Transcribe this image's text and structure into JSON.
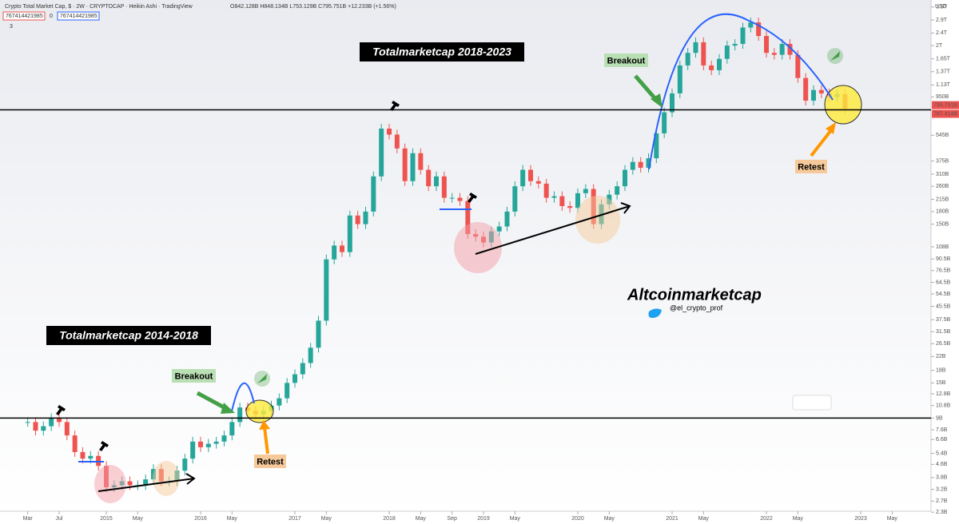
{
  "header": {
    "title": "Crypto Total Market Cap, $ · 2W · CRYPTOCAP · Heikin Ashi · TradingView",
    "ohlc": "O842.128B H848.134B L753.129B C795.751B +12.233B (+1.56%)",
    "inputs": [
      "767414421985",
      "0",
      "767414421985"
    ],
    "count": "3"
  },
  "chart_data": {
    "type": "candlestick",
    "x": [
      "2014-03",
      "2014-04",
      "2014-05",
      "2014-06",
      "2014-07",
      "2014-08",
      "2014-09",
      "2014-10",
      "2014-11",
      "2014-12",
      "2015-01",
      "2015-02",
      "2015-03",
      "2015-04",
      "2015-05",
      "2015-06",
      "2015-07",
      "2015-08",
      "2015-09",
      "2015-10",
      "2015-11",
      "2015-12",
      "2016-01",
      "2016-02",
      "2016-03",
      "2016-04",
      "2016-05",
      "2016-06",
      "2016-07",
      "2016-08",
      "2016-09",
      "2016-10",
      "2016-11",
      "2016-12",
      "2017-01",
      "2017-02",
      "2017-03",
      "2017-04",
      "2017-05",
      "2017-06",
      "2017-07",
      "2017-08",
      "2017-09",
      "2017-10",
      "2017-11",
      "2017-12",
      "2018-01",
      "2018-02",
      "2018-03",
      "2018-04",
      "2018-05",
      "2018-06",
      "2018-07",
      "2018-08",
      "2018-09",
      "2018-10",
      "2018-11",
      "2018-12",
      "2019-01",
      "2019-02",
      "2019-03",
      "2019-04",
      "2019-05",
      "2019-06",
      "2019-07",
      "2019-08",
      "2019-09",
      "2019-10",
      "2019-11",
      "2019-12",
      "2020-01",
      "2020-02",
      "2020-03",
      "2020-04",
      "2020-05",
      "2020-06",
      "2020-07",
      "2020-08",
      "2020-09",
      "2020-10",
      "2020-11",
      "2020-12",
      "2021-01",
      "2021-02",
      "2021-03",
      "2021-04",
      "2021-05",
      "2021-06",
      "2021-07",
      "2021-08",
      "2021-09",
      "2021-10",
      "2021-11",
      "2021-12",
      "2022-01",
      "2022-02",
      "2022-03",
      "2022-04",
      "2022-05",
      "2022-06",
      "2022-07",
      "2022-08",
      "2022-09",
      "2022-10",
      "2022-11"
    ],
    "close": [
      8.5,
      7.5,
      8,
      9,
      8.5,
      7,
      5.5,
      5,
      5.2,
      4.5,
      3.3,
      3.4,
      3.6,
      3.4,
      3.4,
      3.7,
      4.3,
      3.6,
      3.6,
      4.2,
      5,
      6.4,
      5.9,
      6.2,
      6.4,
      7,
      8.5,
      10.5,
      10,
      9.5,
      10,
      10.8,
      12,
      15,
      17,
      20,
      25,
      37,
      90,
      110,
      100,
      170,
      150,
      180,
      300,
      600,
      550,
      450,
      280,
      420,
      330,
      260,
      300,
      220,
      220,
      210,
      130,
      125,
      115,
      135,
      145,
      180,
      260,
      330,
      280,
      270,
      220,
      225,
      195,
      190,
      235,
      250,
      150,
      200,
      230,
      260,
      330,
      370,
      340,
      390,
      560,
      760,
      1000,
      1500,
      1800,
      2100,
      1500,
      1400,
      1650,
      2000,
      2050,
      2600,
      2800,
      2300,
      1800,
      1750,
      2050,
      1750,
      1250,
      900,
      1050,
      1000,
      950,
      990,
      800
    ],
    "up_color": "#26a69a",
    "down_color": "#ef5350",
    "log": true,
    "ylim": [
      2.2,
      3700
    ],
    "yticks": [
      {
        "value": 3500,
        "label": "3.5T"
      },
      {
        "value": 2900,
        "label": "2.9T"
      },
      {
        "value": 2400,
        "label": "2.4T"
      },
      {
        "value": 2000,
        "label": "2T"
      },
      {
        "value": 1650,
        "label": "1.65T"
      },
      {
        "value": 1370,
        "label": "1.37T"
      },
      {
        "value": 1130,
        "label": "1.13T"
      },
      {
        "value": 950,
        "label": "950B"
      },
      {
        "value": 545,
        "label": "545B"
      },
      {
        "value": 375,
        "label": "375B"
      },
      {
        "value": 310,
        "label": "310B"
      },
      {
        "value": 260,
        "label": "260B"
      },
      {
        "value": 215,
        "label": "215B"
      },
      {
        "value": 180,
        "label": "180B"
      },
      {
        "value": 150,
        "label": "150B"
      },
      {
        "value": 108,
        "label": "108B"
      },
      {
        "value": 90.5,
        "label": "90.5B"
      },
      {
        "value": 76.5,
        "label": "76.5B"
      },
      {
        "value": 64.5,
        "label": "64.5B"
      },
      {
        "value": 54.5,
        "label": "54.5B"
      },
      {
        "value": 45.5,
        "label": "45.5B"
      },
      {
        "value": 37.5,
        "label": "37.5B"
      },
      {
        "value": 31.5,
        "label": "31.5B"
      },
      {
        "value": 26.5,
        "label": "26.5B"
      },
      {
        "value": 22,
        "label": "22B"
      },
      {
        "value": 18,
        "label": "18B"
      },
      {
        "value": 15,
        "label": "15B"
      },
      {
        "value": 12.8,
        "label": "12.8B"
      },
      {
        "value": 10.8,
        "label": "10.8B"
      },
      {
        "value": 9,
        "label": "9B"
      },
      {
        "value": 7.6,
        "label": "7.6B"
      },
      {
        "value": 6.6,
        "label": "6.6B"
      },
      {
        "value": 5.4,
        "label": "5.4B"
      },
      {
        "value": 4.6,
        "label": "4.6B"
      },
      {
        "value": 3.8,
        "label": "3.8B"
      },
      {
        "value": 3.2,
        "label": "3.2B"
      },
      {
        "value": 2.7,
        "label": "2.7B"
      },
      {
        "value": 2.3,
        "label": "2.3B"
      }
    ],
    "xticks": [
      {
        "value": "2014-03",
        "label": "Mar"
      },
      {
        "value": "2014-07",
        "label": "Jul"
      },
      {
        "value": "2015-01",
        "label": "2015"
      },
      {
        "value": "2015-05",
        "label": "May"
      },
      {
        "value": "2016-01",
        "label": "2016"
      },
      {
        "value": "2016-05",
        "label": "May"
      },
      {
        "value": "2017-01",
        "label": "2017"
      },
      {
        "value": "2017-05",
        "label": "May"
      },
      {
        "value": "2018-01",
        "label": "2018"
      },
      {
        "value": "2018-05",
        "label": "May"
      },
      {
        "value": "2018-09",
        "label": "Sep"
      },
      {
        "value": "2019-01",
        "label": "2019"
      },
      {
        "value": "2019-05",
        "label": "May"
      },
      {
        "value": "2020-01",
        "label": "2020"
      },
      {
        "value": "2020-05",
        "label": "May"
      },
      {
        "value": "2021-01",
        "label": "2021"
      },
      {
        "value": "2021-05",
        "label": "May"
      },
      {
        "value": "2022-01",
        "label": "2022"
      },
      {
        "value": "2022-05",
        "label": "May"
      },
      {
        "value": "2023-01",
        "label": "2023"
      },
      {
        "value": "2023-05",
        "label": "May"
      }
    ],
    "axis_unit": "USD",
    "levels": [
      9,
      787.414
    ],
    "price_markers": [
      {
        "value": 795.751,
        "label": "795.751B"
      },
      {
        "value": 787.414,
        "label": "787.414B"
      }
    ],
    "annotations": [
      "Totalmarketcap 2018-2023",
      "Totalmarketcap 2014-2018",
      "Breakout",
      "Breakout",
      "Retest",
      "Retest",
      "Altcoinmarketcap",
      "@el_crypto_prof"
    ]
  }
}
